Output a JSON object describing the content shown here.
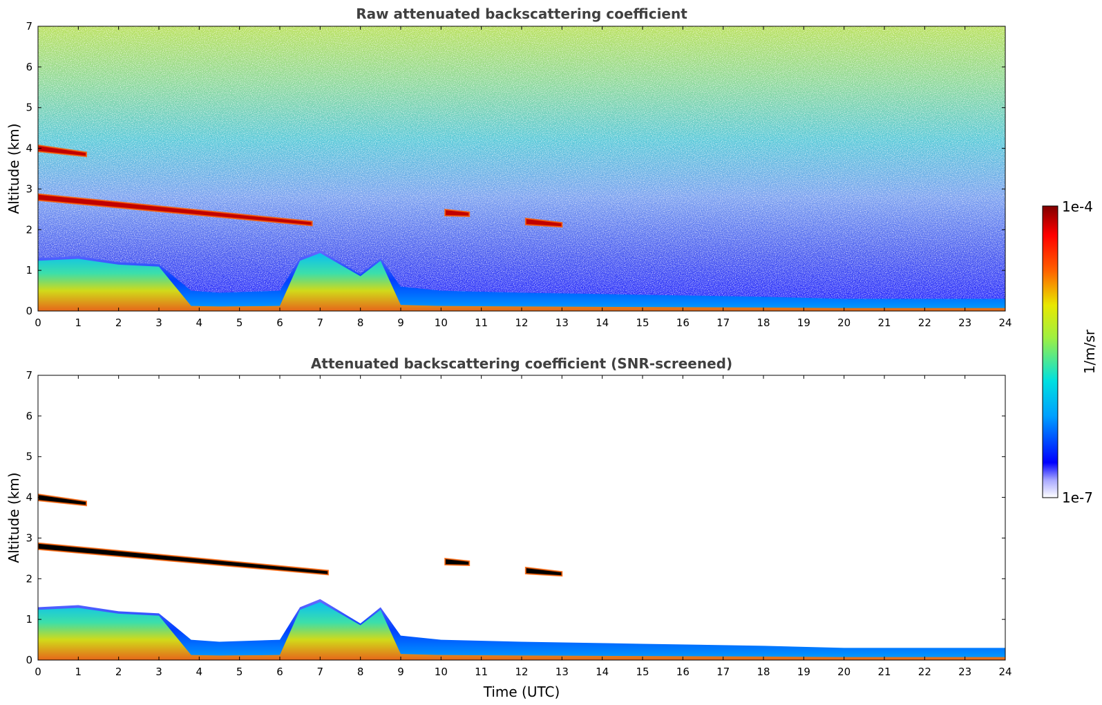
{
  "colors": {
    "colormap": [
      "#ffffff",
      "#dcdcf8",
      "#a8a8ff",
      "#6a6aff",
      "#0000ff",
      "#0050ff",
      "#00a0ff",
      "#00e0e0",
      "#40f0a0",
      "#a0f040",
      "#e8e800",
      "#ffb000",
      "#ff6000",
      "#ff0000",
      "#c00000",
      "#800000"
    ],
    "saturated": "#000000"
  },
  "colorbar": {
    "label": "1/m/sr",
    "min_label": "1e-7",
    "max_label": "1e-4",
    "scale": "log"
  },
  "chart_data": [
    {
      "type": "heatmap",
      "title": "Raw attenuated backscattering coefficient",
      "xlabel": "",
      "ylabel": "Altitude (km)",
      "xlim": [
        0,
        24
      ],
      "ylim": [
        0,
        7
      ],
      "xticks": [
        "0",
        "1",
        "2",
        "3",
        "4",
        "5",
        "6",
        "7",
        "8",
        "9",
        "10",
        "11",
        "12",
        "13",
        "14",
        "15",
        "16",
        "17",
        "18",
        "19",
        "20",
        "21",
        "22",
        "23",
        "24"
      ],
      "yticks": [
        "0",
        "1",
        "2",
        "3",
        "4",
        "5",
        "6",
        "7"
      ],
      "features": [
        {
          "kind": "cloud_layer",
          "x": [
            0.0,
            1.2
          ],
          "y": [
            4.0,
            3.85
          ]
        },
        {
          "kind": "cloud_layer",
          "x": [
            0.0,
            6.8
          ],
          "y": [
            2.8,
            2.15
          ]
        },
        {
          "kind": "cloud_layer",
          "x": [
            10.1,
            10.7
          ],
          "y": [
            2.42,
            2.38
          ]
        },
        {
          "kind": "cloud_layer",
          "x": [
            12.1,
            13.0
          ],
          "y": [
            2.2,
            2.12
          ]
        },
        {
          "kind": "boundary_layer_top",
          "x": [
            0,
            1,
            2,
            3,
            3.8,
            4.5,
            6,
            6.5,
            7,
            7.5,
            8,
            8.5,
            9,
            10,
            12,
            15,
            18,
            20,
            24
          ],
          "y": [
            1.3,
            1.35,
            1.2,
            1.15,
            0.5,
            0.45,
            0.5,
            1.3,
            1.5,
            1.2,
            0.9,
            1.3,
            0.6,
            0.5,
            0.45,
            0.4,
            0.35,
            0.3,
            0.3
          ]
        }
      ]
    },
    {
      "type": "heatmap",
      "title": "Attenuated backscattering coefficient (SNR-screened)",
      "xlabel": "Time (UTC)",
      "ylabel": "Altitude (km)",
      "xlim": [
        0,
        24
      ],
      "ylim": [
        0,
        7
      ],
      "xticks": [
        "0",
        "1",
        "2",
        "3",
        "4",
        "5",
        "6",
        "7",
        "8",
        "9",
        "10",
        "11",
        "12",
        "13",
        "14",
        "15",
        "16",
        "17",
        "18",
        "19",
        "20",
        "21",
        "22",
        "23",
        "24"
      ],
      "yticks": [
        "0",
        "1",
        "2",
        "3",
        "4",
        "5",
        "6",
        "7"
      ],
      "features": [
        {
          "kind": "cloud_layer",
          "x": [
            0.0,
            1.2
          ],
          "y": [
            4.0,
            3.85
          ]
        },
        {
          "kind": "cloud_layer",
          "x": [
            0.0,
            7.2
          ],
          "y": [
            2.8,
            2.15
          ]
        },
        {
          "kind": "cloud_layer",
          "x": [
            10.1,
            10.7
          ],
          "y": [
            2.42,
            2.38
          ]
        },
        {
          "kind": "cloud_layer",
          "x": [
            12.1,
            13.0
          ],
          "y": [
            2.2,
            2.12
          ]
        },
        {
          "kind": "boundary_layer_top",
          "x": [
            0,
            1,
            2,
            3,
            3.8,
            4.5,
            6,
            6.5,
            7,
            7.5,
            8,
            8.5,
            9,
            10,
            12,
            15,
            18,
            20,
            24
          ],
          "y": [
            1.3,
            1.35,
            1.2,
            1.15,
            0.5,
            0.45,
            0.5,
            1.3,
            1.5,
            1.2,
            0.9,
            1.3,
            0.6,
            0.5,
            0.45,
            0.4,
            0.35,
            0.3,
            0.3
          ]
        }
      ]
    }
  ]
}
